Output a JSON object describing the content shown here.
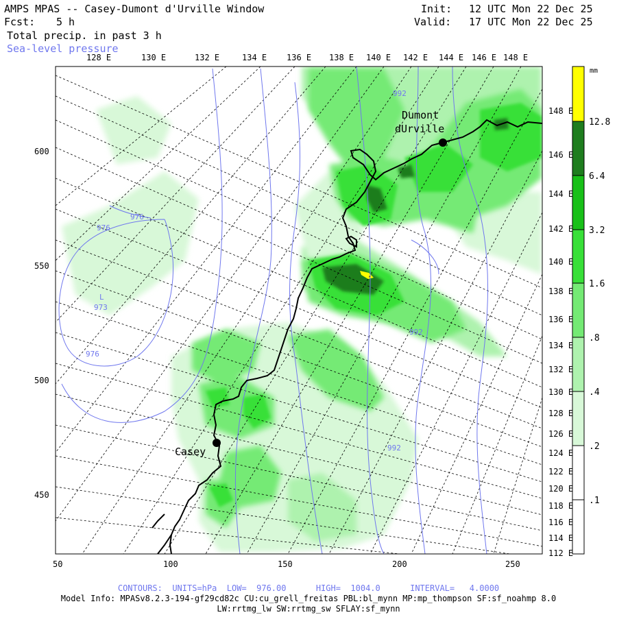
{
  "header": {
    "title": "AMPS MPAS -- Casey-Dumont d'Urville Window",
    "fcst_label": "Fcst:",
    "fcst_value": "5 h",
    "field": "Total precip. in past 3 h",
    "overlay": "Sea-level pressure",
    "init_label": "Init:",
    "init_value": "12 UTC Mon 22 Dec 25",
    "valid_label": "Valid:",
    "valid_value": "17 UTC Mon 22 Dec 25"
  },
  "top_axis": [
    "128 E",
    "130 E",
    "132 E",
    "134 E",
    "136 E",
    "138 E",
    "140 E",
    "142 E",
    "144 E",
    "146 E",
    "148 E"
  ],
  "left_axis": [
    "600",
    "550",
    "500",
    "450"
  ],
  "bottom_axis": [
    "50",
    "100",
    "150",
    "200",
    "250"
  ],
  "right_axis": [
    "148 E",
    "146 E",
    "144 E",
    "142 E",
    "140 E",
    "138 E",
    "136 E",
    "134 E",
    "132 E",
    "130 E",
    "128 E",
    "126 E",
    "124 E",
    "122 E",
    "120 E",
    "118 E",
    "116 E",
    "114 E",
    "112 E"
  ],
  "colorbar": {
    "unit": "mm",
    "labels": [
      "12.8",
      "6.4",
      "3.2",
      "1.6",
      ".8",
      ".4",
      ".2",
      ".1"
    ],
    "colors": [
      "#ffff00",
      "#1e7d1e",
      "#18c018",
      "#38e038",
      "#74ea74",
      "#aef2ae",
      "#d8f8d8",
      "#ffffff"
    ]
  },
  "stations": {
    "casey": "Casey",
    "dumont_1": "Dumont",
    "dumont_2": "dUrville"
  },
  "isobars": {
    "l976a": "976",
    "l976b": "976",
    "l976c": "976",
    "low": "L",
    "low_val": "973",
    "l992a": "992",
    "l992b": "992",
    "l992c": "992"
  },
  "footer": {
    "contours": "CONTOURS:  UNITS=hPa  LOW=  976.00      HIGH=  1004.0      INTERVAL=   4.0000",
    "model1": "Model Info: MPASv8.2.3-194-gf29cd82c CU:cu_grell_freitas PBL:bl_mynn MP:mp_thompson SF:sf_noahmp 8.0",
    "model2": "LW:rrtmg_lw SW:rrtmg_sw SFLAY:sf_mynn"
  }
}
